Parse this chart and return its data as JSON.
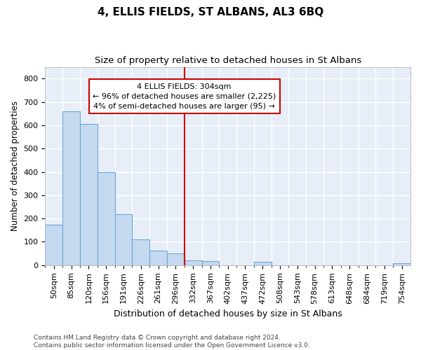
{
  "title": "4, ELLIS FIELDS, ST ALBANS, AL3 6BQ",
  "subtitle": "Size of property relative to detached houses in St Albans",
  "xlabel": "Distribution of detached houses by size in St Albans",
  "ylabel": "Number of detached properties",
  "footer_line1": "Contains HM Land Registry data © Crown copyright and database right 2024.",
  "footer_line2": "Contains public sector information licensed under the Open Government Licence v3.0.",
  "bar_labels": [
    "50sqm",
    "85sqm",
    "120sqm",
    "156sqm",
    "191sqm",
    "226sqm",
    "261sqm",
    "296sqm",
    "332sqm",
    "367sqm",
    "402sqm",
    "437sqm",
    "472sqm",
    "508sqm",
    "543sqm",
    "578sqm",
    "613sqm",
    "648sqm",
    "684sqm",
    "719sqm",
    "754sqm"
  ],
  "bar_values": [
    175,
    660,
    605,
    400,
    218,
    110,
    63,
    50,
    20,
    18,
    0,
    0,
    15,
    0,
    0,
    0,
    0,
    0,
    0,
    0,
    7
  ],
  "bar_color": "#c5d9f0",
  "bar_edge_color": "#6aaad4",
  "background_color": "#e8eef8",
  "gridcolor": "#ffffff",
  "vline_x_idx": 7,
  "vline_color": "#cc0000",
  "annotation_line1": "4 ELLIS FIELDS: 304sqm",
  "annotation_line2": "← 96% of detached houses are smaller (2,225)",
  "annotation_line3": "4% of semi-detached houses are larger (95) →",
  "annotation_box_color": "#cc0000",
  "ylim": [
    0,
    850
  ],
  "yticks": [
    0,
    100,
    200,
    300,
    400,
    500,
    600,
    700,
    800
  ],
  "title_fontsize": 11,
  "subtitle_fontsize": 9.5,
  "xlabel_fontsize": 9,
  "ylabel_fontsize": 8.5,
  "tick_fontsize": 8,
  "annot_fontsize": 8,
  "footer_fontsize": 6.5
}
